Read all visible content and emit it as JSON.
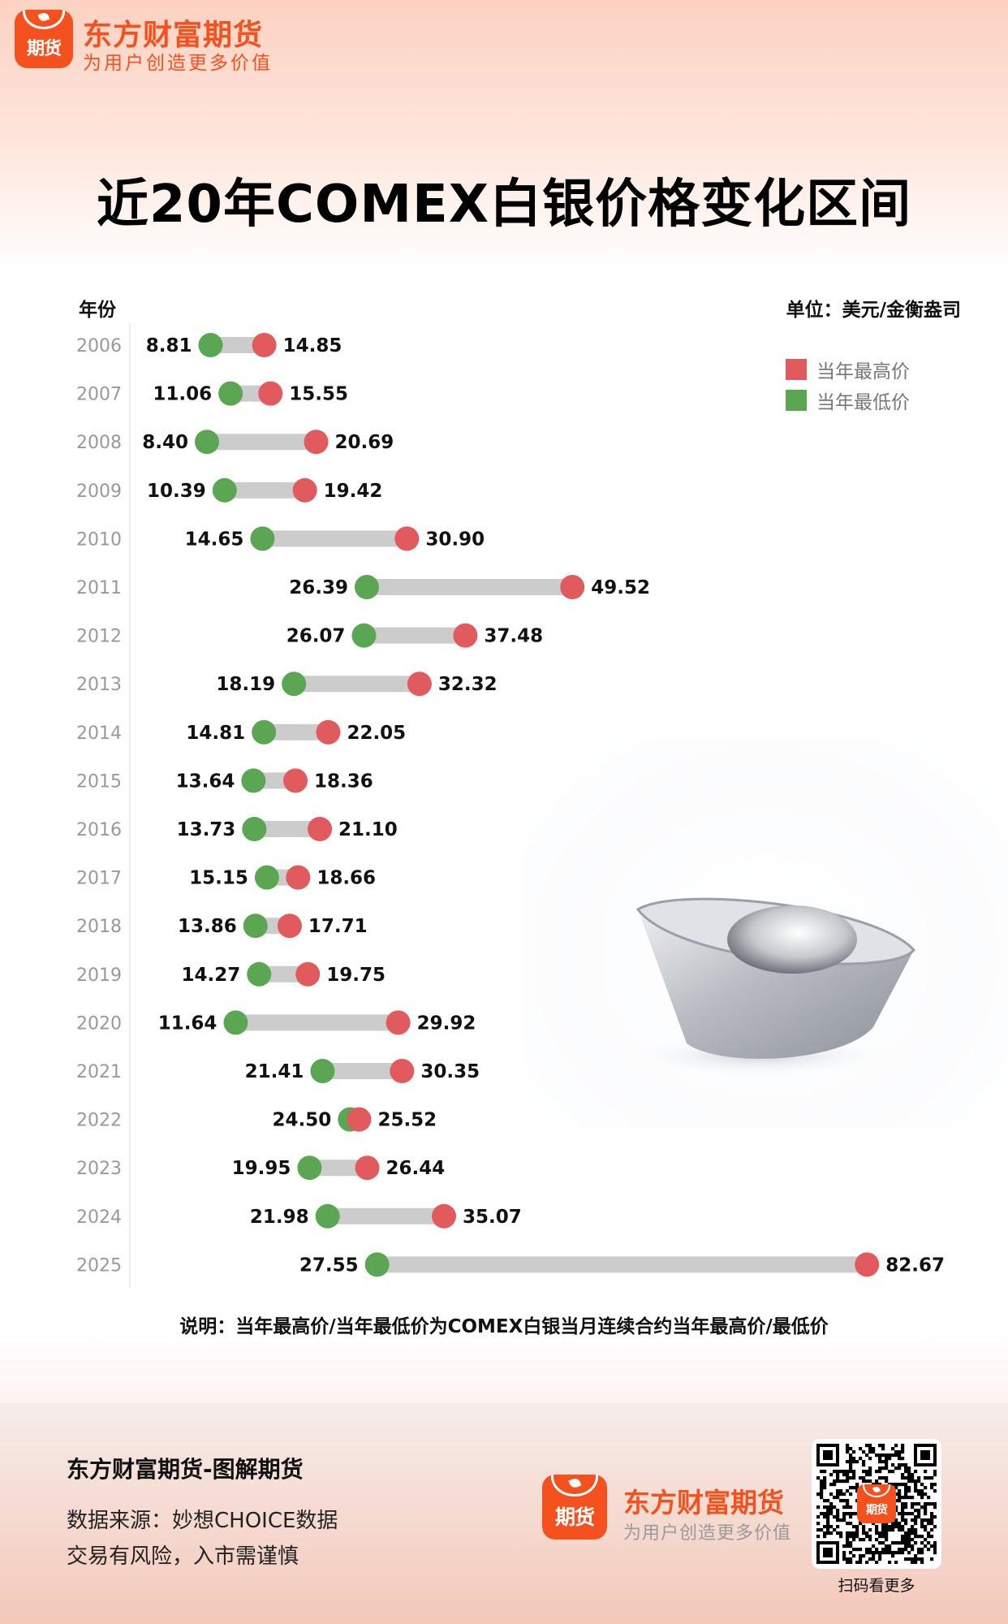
{
  "brand": {
    "name": "东方财富期货",
    "slogan": "为用户创造更多价值",
    "icon_text": "期货",
    "color": "#f4511e"
  },
  "title": "近20年COMEX白银价格变化区间",
  "column_label": "年份",
  "unit_label": "单位：美元/金衡盎司",
  "footnote": "说明：当年最高价/当年最低价为COMEX白银当月连续合约当年最高价/最低价",
  "chart_data": {
    "type": "dumbbell",
    "title": "近20年COMEX白银价格变化区间",
    "xlabel": "",
    "ylabel": "年份",
    "unit": "美元/金衡盎司",
    "legend_position": "top-right",
    "grid": false,
    "colors": {
      "high": "#e05a5e",
      "low": "#5aa652",
      "range": "#cccccc"
    },
    "categories": [
      "2006",
      "2007",
      "2008",
      "2009",
      "2010",
      "2011",
      "2012",
      "2013",
      "2014",
      "2015",
      "2016",
      "2017",
      "2018",
      "2019",
      "2020",
      "2021",
      "2022",
      "2023",
      "2024",
      "2025"
    ],
    "series": [
      {
        "name": "当年最高价",
        "key": "high",
        "values": [
          14.85,
          15.55,
          20.69,
          19.42,
          30.9,
          49.52,
          37.48,
          32.32,
          22.05,
          18.36,
          21.1,
          18.66,
          17.71,
          19.75,
          29.92,
          30.35,
          25.52,
          26.44,
          35.07,
          82.67
        ]
      },
      {
        "name": "当年最低价",
        "key": "low",
        "values": [
          8.81,
          11.06,
          8.4,
          10.39,
          14.65,
          26.39,
          26.07,
          18.19,
          14.81,
          13.64,
          13.73,
          15.15,
          13.86,
          14.27,
          11.64,
          21.41,
          24.5,
          19.95,
          21.98,
          27.55
        ]
      }
    ],
    "xlim": [
      0,
      90
    ]
  },
  "legend": [
    {
      "label": "当年最高价",
      "color": "#e05a5e"
    },
    {
      "label": "当年最低价",
      "color": "#5aa652"
    }
  ],
  "illustration": "silver-ingot",
  "footer": {
    "title": "东方财富期货-图解期货",
    "source": "数据来源：妙想CHOICE数据",
    "risk": "交易有风险，入市需谨慎",
    "qr_caption": "扫码看更多"
  }
}
